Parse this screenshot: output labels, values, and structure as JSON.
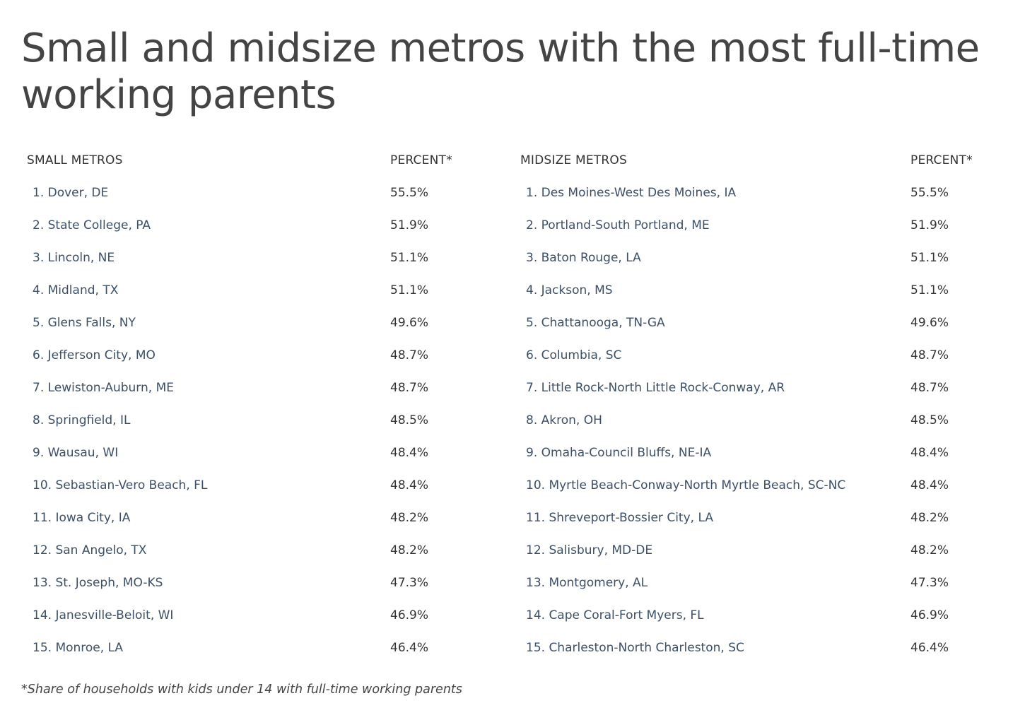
{
  "title": "Small and midsize metros with the most full-time working parents",
  "small": {
    "header_name": "SMALL METROS",
    "header_pct": "PERCENT*",
    "rows": [
      {
        "name": "1. Dover, DE",
        "pct": "55.5%"
      },
      {
        "name": "2. State College, PA",
        "pct": "51.9%"
      },
      {
        "name": "3. Lincoln, NE",
        "pct": "51.1%"
      },
      {
        "name": "4. Midland, TX",
        "pct": "51.1%"
      },
      {
        "name": "5. Glens Falls, NY",
        "pct": "49.6%"
      },
      {
        "name": "6. Jefferson City, MO",
        "pct": "48.7%"
      },
      {
        "name": "7. Lewiston-Auburn, ME",
        "pct": "48.7%"
      },
      {
        "name": "8. Springfield, IL",
        "pct": "48.5%"
      },
      {
        "name": "9. Wausau, WI",
        "pct": "48.4%"
      },
      {
        "name": "10. Sebastian-Vero Beach, FL",
        "pct": "48.4%"
      },
      {
        "name": "11. Iowa City, IA",
        "pct": "48.2%"
      },
      {
        "name": "12. San Angelo, TX",
        "pct": "48.2%"
      },
      {
        "name": "13. St. Joseph, MO-KS",
        "pct": "47.3%"
      },
      {
        "name": "14. Janesville-Beloit, WI",
        "pct": "46.9%"
      },
      {
        "name": "15. Monroe, LA",
        "pct": "46.4%"
      }
    ]
  },
  "midsize": {
    "header_name": "MIDSIZE METROS",
    "header_pct": "PERCENT*",
    "rows": [
      {
        "name": "1. Des Moines-West Des Moines, IA",
        "pct": "55.5%"
      },
      {
        "name": "2. Portland-South Portland, ME",
        "pct": "51.9%"
      },
      {
        "name": "3. Baton Rouge, LA",
        "pct": "51.1%"
      },
      {
        "name": "4. Jackson, MS",
        "pct": "51.1%"
      },
      {
        "name": "5. Chattanooga, TN-GA",
        "pct": "49.6%"
      },
      {
        "name": "6. Columbia, SC",
        "pct": "48.7%"
      },
      {
        "name": "7. Little Rock-North Little Rock-Conway, AR",
        "pct": "48.7%"
      },
      {
        "name": "8. Akron, OH",
        "pct": "48.5%"
      },
      {
        "name": "9. Omaha-Council Bluffs, NE-IA",
        "pct": "48.4%"
      },
      {
        "name": "10. Myrtle Beach-Conway-North Myrtle Beach, SC-NC",
        "pct": "48.4%"
      },
      {
        "name": "11. Shreveport-Bossier City, LA",
        "pct": "48.2%"
      },
      {
        "name": "12. Salisbury, MD-DE",
        "pct": "48.2%"
      },
      {
        "name": "13. Montgomery, AL",
        "pct": "47.3%"
      },
      {
        "name": "14. Cape Coral-Fort Myers, FL",
        "pct": "46.9%"
      },
      {
        "name": "15. Charleston-North Charleston, SC",
        "pct": "46.4%"
      }
    ]
  },
  "footnote": "*Share of households with kids under 14 with full-time working parents"
}
